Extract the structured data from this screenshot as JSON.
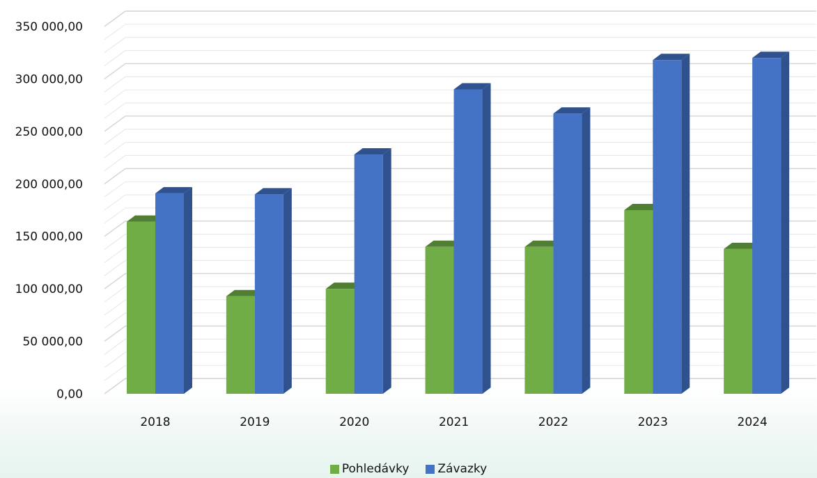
{
  "chart_data": {
    "type": "bar",
    "title": "",
    "xlabel": "",
    "ylabel": "",
    "categories": [
      "2018",
      "2019",
      "2020",
      "2021",
      "2022",
      "2023",
      "2024"
    ],
    "series": [
      {
        "name": "Pohledávky",
        "color": "#70ad47",
        "side_color": "#507e32",
        "top_color": "#507e32",
        "values": [
          164000,
          93000,
          100000,
          140000,
          140000,
          175000,
          138000
        ]
      },
      {
        "name": "Závazky",
        "color": "#4472c4",
        "side_color": "#2f528f",
        "top_color": "#2f528f",
        "values": [
          191000,
          190000,
          228000,
          290000,
          267000,
          318000,
          320000
        ]
      }
    ],
    "ylim": [
      0,
      350000
    ],
    "ytick_values": [
      0,
      50000,
      100000,
      150000,
      200000,
      250000,
      300000,
      350000
    ],
    "ytick_labels": [
      "0,00",
      "50 000,00",
      "100 000,00",
      "150 000,00",
      "200 000,00",
      "250 000,00",
      "300 000,00",
      "350 000,00"
    ],
    "grid": true,
    "legend_position": "bottom"
  }
}
